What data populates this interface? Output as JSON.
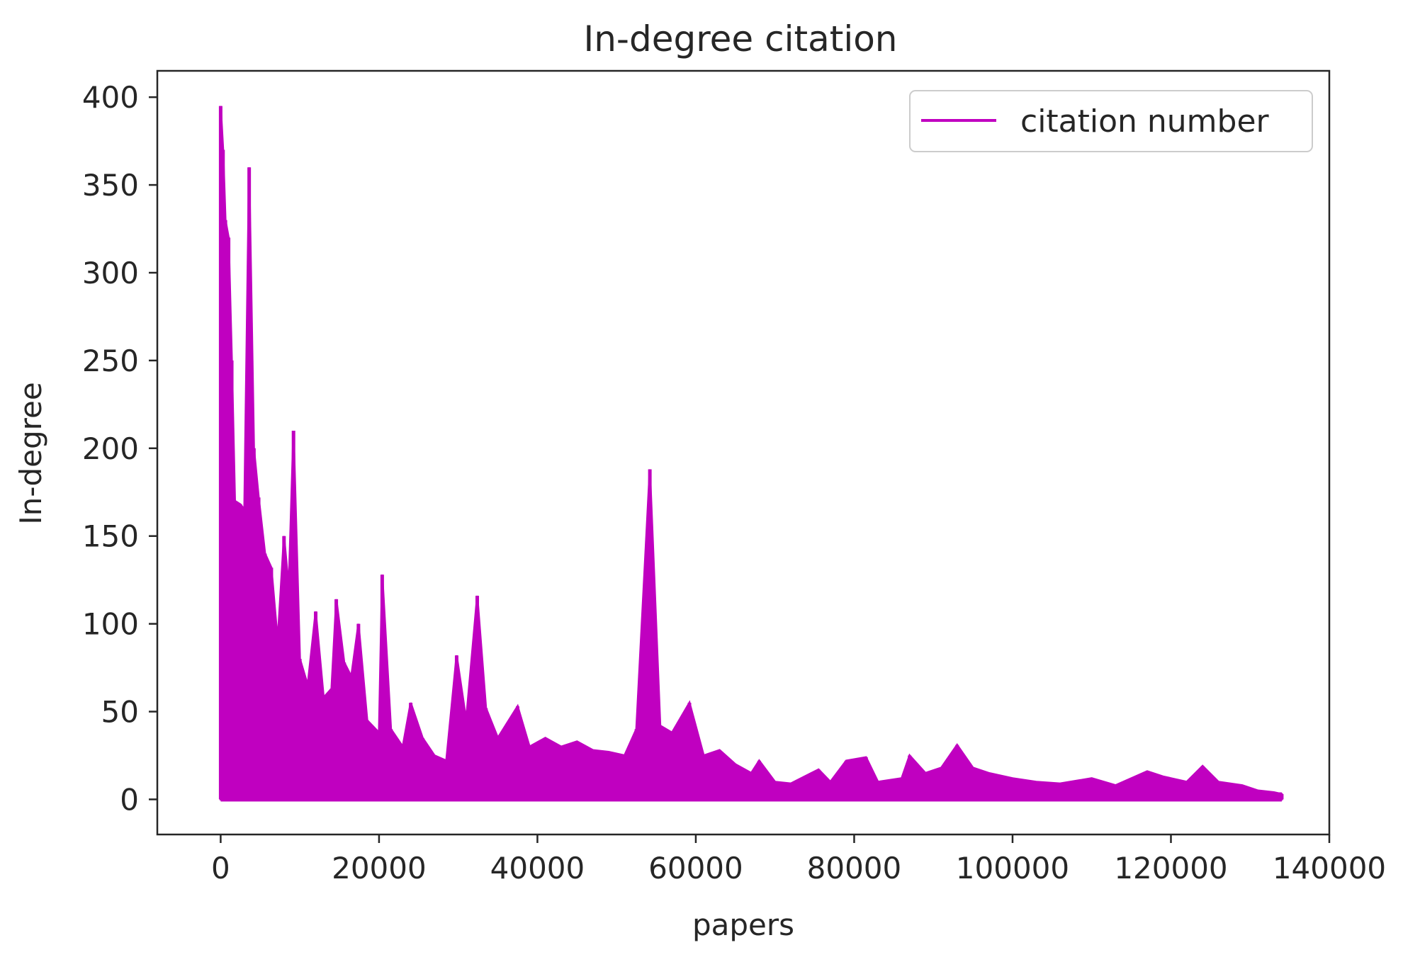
{
  "chart_data": {
    "type": "line",
    "title": "In-degree citation",
    "xlabel": "papers",
    "ylabel": "In-degree",
    "xlim": [
      -8000,
      140000
    ],
    "ylim": [
      -20,
      415
    ],
    "xticks": [
      0,
      20000,
      40000,
      60000,
      80000,
      100000,
      120000,
      140000
    ],
    "yticks": [
      0,
      50,
      100,
      150,
      200,
      250,
      300,
      350,
      400
    ],
    "grid": false,
    "legend_position": "top-right",
    "colors": {
      "line": "#c000c0",
      "axes": "#262626",
      "legend_border": "#cccccc"
    },
    "series": [
      {
        "name": "citation number",
        "envelope": [
          [
            0,
            395
          ],
          [
            300,
            370
          ],
          [
            600,
            330
          ],
          [
            1000,
            320
          ],
          [
            1400,
            250
          ],
          [
            1800,
            170
          ],
          [
            2500,
            168
          ],
          [
            3000,
            165
          ],
          [
            3600,
            360
          ],
          [
            4200,
            200
          ],
          [
            4800,
            172
          ],
          [
            5600,
            140
          ],
          [
            6400,
            132
          ],
          [
            7200,
            90
          ],
          [
            8000,
            150
          ],
          [
            8600,
            120
          ],
          [
            9200,
            210
          ],
          [
            10000,
            80
          ],
          [
            11000,
            65
          ],
          [
            12000,
            107
          ],
          [
            13000,
            58
          ],
          [
            14000,
            63
          ],
          [
            14600,
            114
          ],
          [
            15600,
            78
          ],
          [
            16500,
            70
          ],
          [
            17400,
            100
          ],
          [
            18500,
            45
          ],
          [
            20000,
            38
          ],
          [
            20400,
            128
          ],
          [
            21500,
            40
          ],
          [
            23000,
            30
          ],
          [
            24000,
            55
          ],
          [
            25500,
            35
          ],
          [
            27000,
            25
          ],
          [
            28500,
            22
          ],
          [
            29800,
            82
          ],
          [
            31000,
            45
          ],
          [
            32400,
            116
          ],
          [
            33500,
            52
          ],
          [
            35000,
            35
          ],
          [
            37500,
            53
          ],
          [
            39000,
            30
          ],
          [
            41000,
            35
          ],
          [
            43000,
            30
          ],
          [
            45000,
            33
          ],
          [
            47000,
            28
          ],
          [
            49000,
            27
          ],
          [
            51000,
            25
          ],
          [
            52500,
            40
          ],
          [
            54200,
            188
          ],
          [
            55500,
            42
          ],
          [
            57000,
            38
          ],
          [
            59200,
            55
          ],
          [
            61000,
            25
          ],
          [
            63000,
            28
          ],
          [
            65000,
            20
          ],
          [
            67000,
            15
          ],
          [
            68000,
            22
          ],
          [
            70000,
            10
          ],
          [
            72000,
            9
          ],
          [
            75500,
            17
          ],
          [
            77000,
            10
          ],
          [
            79000,
            22
          ],
          [
            81500,
            24
          ],
          [
            83000,
            10
          ],
          [
            86000,
            12
          ],
          [
            87000,
            25
          ],
          [
            89000,
            15
          ],
          [
            91000,
            18
          ],
          [
            93000,
            31
          ],
          [
            95000,
            18
          ],
          [
            97000,
            15
          ],
          [
            100000,
            12
          ],
          [
            103000,
            10
          ],
          [
            106000,
            9
          ],
          [
            110000,
            12
          ],
          [
            113000,
            8
          ],
          [
            117000,
            16
          ],
          [
            119000,
            13
          ],
          [
            122000,
            10
          ],
          [
            124000,
            19
          ],
          [
            126000,
            10
          ],
          [
            129000,
            8
          ],
          [
            131000,
            5
          ],
          [
            133000,
            4
          ],
          [
            134000,
            3
          ]
        ]
      }
    ]
  }
}
